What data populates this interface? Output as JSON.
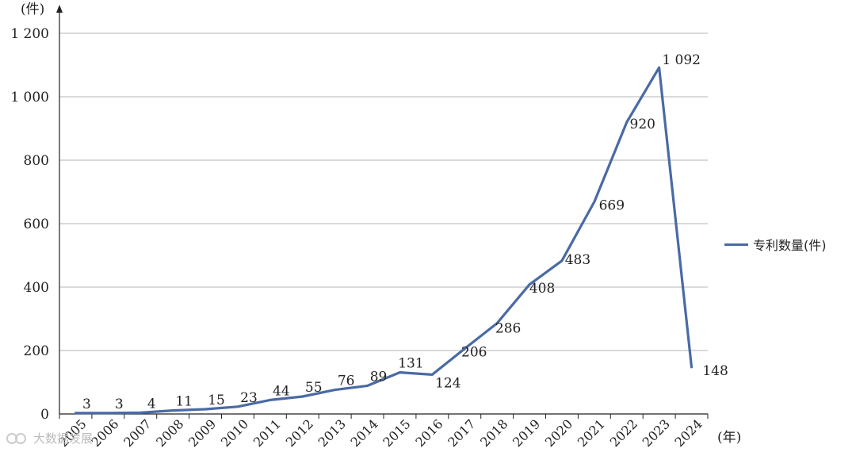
{
  "chart_data": {
    "type": "line",
    "categories": [
      "2005",
      "2006",
      "2007",
      "2008",
      "2009",
      "2010",
      "2011",
      "2012",
      "2013",
      "2014",
      "2015",
      "2016",
      "2017",
      "2018",
      "2019",
      "2020",
      "2021",
      "2022",
      "2023",
      "2024"
    ],
    "series": [
      {
        "name": "专利数量(件)",
        "values": [
          3,
          3,
          4,
          11,
          15,
          23,
          44,
          55,
          76,
          89,
          131,
          124,
          206,
          286,
          408,
          483,
          669,
          920,
          1092,
          148
        ],
        "value_labels": [
          "3",
          "3",
          "4",
          "11",
          "15",
          "23",
          "44",
          "55",
          "76",
          "89",
          "131",
          "124",
          "206",
          "286",
          "408",
          "483",
          "669",
          "920",
          "1 092",
          "148"
        ],
        "color": "#4a6aa5"
      }
    ],
    "ylim": [
      0,
      1200
    ],
    "yticks": [
      0,
      200,
      400,
      600,
      800,
      1000,
      1200
    ],
    "ytick_labels": [
      "0",
      "200",
      "400",
      "600",
      "800",
      "1 000",
      "1 200"
    ],
    "ylabel": "(件)",
    "xlabel": "(年)",
    "grid": "horizontal",
    "legend_position": "right"
  },
  "legend": {
    "label": "专利数量(件)"
  },
  "watermark": {
    "text": "大数据发展"
  }
}
